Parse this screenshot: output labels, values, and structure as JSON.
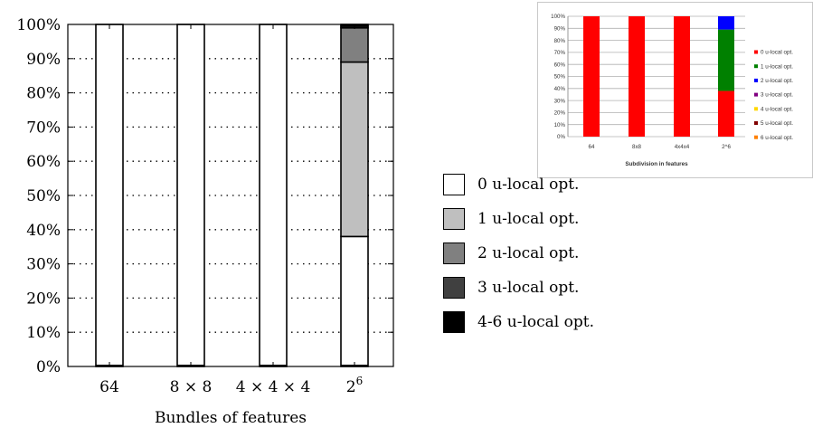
{
  "chart_data": [
    {
      "type": "bar",
      "stacked": true,
      "percent": true,
      "categories": [
        "64",
        "8 × 8",
        "4 × 4 × 4",
        "2^6"
      ],
      "xlabel": "Bundles of features",
      "ylabel": "",
      "ylim": [
        0,
        100
      ],
      "yticks": [
        "0%",
        "10%",
        "20%",
        "30%",
        "40%",
        "50%",
        "60%",
        "70%",
        "80%",
        "90%",
        "100%"
      ],
      "grid": "dotted horizontal",
      "legend_position": "right",
      "series": [
        {
          "name": "0 u-local opt.",
          "color": "#ffffff",
          "values": [
            100,
            100,
            100,
            38
          ]
        },
        {
          "name": "1 u-local opt.",
          "color": "#bfbfbf",
          "values": [
            0,
            0,
            0,
            51
          ]
        },
        {
          "name": "2 u-local opt.",
          "color": "#808080",
          "values": [
            0,
            0,
            0,
            10
          ]
        },
        {
          "name": "3 u-local opt.",
          "color": "#404040",
          "values": [
            0,
            0,
            0,
            0.5
          ]
        },
        {
          "name": "4-6 u-local opt.",
          "color": "#000000",
          "values": [
            0,
            0,
            0,
            0.5
          ]
        }
      ]
    },
    {
      "type": "bar",
      "stacked": true,
      "percent": true,
      "categories": [
        "64",
        "8x8",
        "4x4x4",
        "2^6"
      ],
      "xlabel": "Subdivision in features",
      "ylabel": "",
      "ylim": [
        0,
        100
      ],
      "yticks": [
        "0%",
        "10%",
        "20%",
        "30%",
        "40%",
        "50%",
        "60%",
        "70%",
        "80%",
        "90%",
        "100%"
      ],
      "grid": "solid horizontal",
      "legend_position": "right",
      "series": [
        {
          "name": "0 u-local opt.",
          "color": "#ff0000",
          "values": [
            100,
            100,
            100,
            38
          ]
        },
        {
          "name": "1 u-local opt.",
          "color": "#008000",
          "values": [
            0,
            0,
            0,
            51
          ]
        },
        {
          "name": "2 u-local opt.",
          "color": "#0000ff",
          "values": [
            0,
            0,
            0,
            11
          ]
        },
        {
          "name": "3 u-local opt.",
          "color": "#800080",
          "values": [
            0,
            0,
            0,
            0
          ]
        },
        {
          "name": "4 u-local opt.",
          "color": "#ffd700",
          "values": [
            0,
            0,
            0,
            0
          ]
        },
        {
          "name": "5 u-local opt.",
          "color": "#800000",
          "values": [
            0,
            0,
            0,
            0
          ]
        },
        {
          "name": "6 u-local opt.",
          "color": "#ff8000",
          "values": [
            0,
            0,
            0,
            0
          ]
        }
      ]
    }
  ]
}
